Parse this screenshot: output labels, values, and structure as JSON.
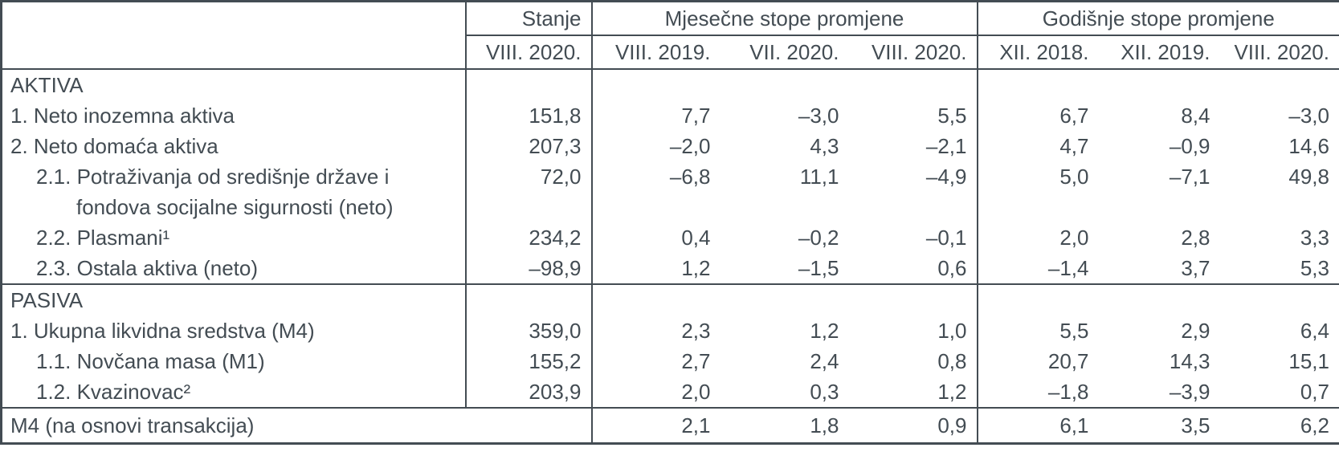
{
  "table": {
    "header": {
      "stanje_label": "Stanje",
      "monthly_group": "Mjesečne stope promjene",
      "yearly_group": "Godišnje stope promjene",
      "stanje_period": "VIII. 2020.",
      "monthly_periods": [
        "VIII. 2019.",
        "VII. 2020.",
        "VIII. 2020."
      ],
      "yearly_periods": [
        "XII. 2018.",
        "XII. 2019.",
        "VIII. 2020."
      ]
    },
    "rows": [
      {
        "type": "section",
        "label": "AKTIVA"
      },
      {
        "type": "data",
        "indent": 0,
        "label": "1. Neto inozemna aktiva",
        "values": [
          "151,8",
          "7,7",
          "–3,0",
          "5,5",
          "6,7",
          "8,4",
          "–3,0"
        ]
      },
      {
        "type": "data",
        "indent": 0,
        "label": "2. Neto domaća aktiva",
        "values": [
          "207,3",
          "–2,0",
          "4,3",
          "–2,1",
          "4,7",
          "–0,9",
          "14,6"
        ]
      },
      {
        "type": "data",
        "indent": 1,
        "lines": [
          "2.1. Potraživanja od središnje države i",
          "fondova socijalne sigurnosti (neto)"
        ],
        "label": "2.1. Potraživanja od središnje države i fondova socijalne sigurnosti (neto)",
        "values": [
          "72,0",
          "–6,8",
          "11,1",
          "–4,9",
          "5,0",
          "–7,1",
          "49,8"
        ]
      },
      {
        "type": "data",
        "indent": 1,
        "label": "2.2. Plasmani¹",
        "values": [
          "234,2",
          "0,4",
          "–0,2",
          "–0,1",
          "2,0",
          "2,8",
          "3,3"
        ]
      },
      {
        "type": "data",
        "indent": 1,
        "label": "2.3. Ostala aktiva (neto)",
        "values": [
          "–98,9",
          "1,2",
          "–1,5",
          "0,6",
          "–1,4",
          "3,7",
          "5,3"
        ]
      },
      {
        "type": "section",
        "label": "PASIVA"
      },
      {
        "type": "data",
        "indent": 0,
        "label": "1. Ukupna likvidna sredstva (M4)",
        "values": [
          "359,0",
          "2,3",
          "1,2",
          "1,0",
          "5,5",
          "2,9",
          "6,4"
        ]
      },
      {
        "type": "data",
        "indent": 1,
        "label": "1.1. Novčana masa (M1)",
        "values": [
          "155,2",
          "2,7",
          "2,4",
          "0,8",
          "20,7",
          "14,3",
          "15,1"
        ]
      },
      {
        "type": "data",
        "indent": 1,
        "label": "1.2. Kvazinovac²",
        "values": [
          "203,9",
          "2,0",
          "0,3",
          "1,2",
          "–1,8",
          "–3,9",
          "0,7"
        ]
      },
      {
        "type": "total",
        "label": "M4 (na osnovi transakcija)",
        "values": [
          "",
          "2,1",
          "1,8",
          "0,9",
          "6,1",
          "3,5",
          "6,2"
        ]
      }
    ]
  }
}
